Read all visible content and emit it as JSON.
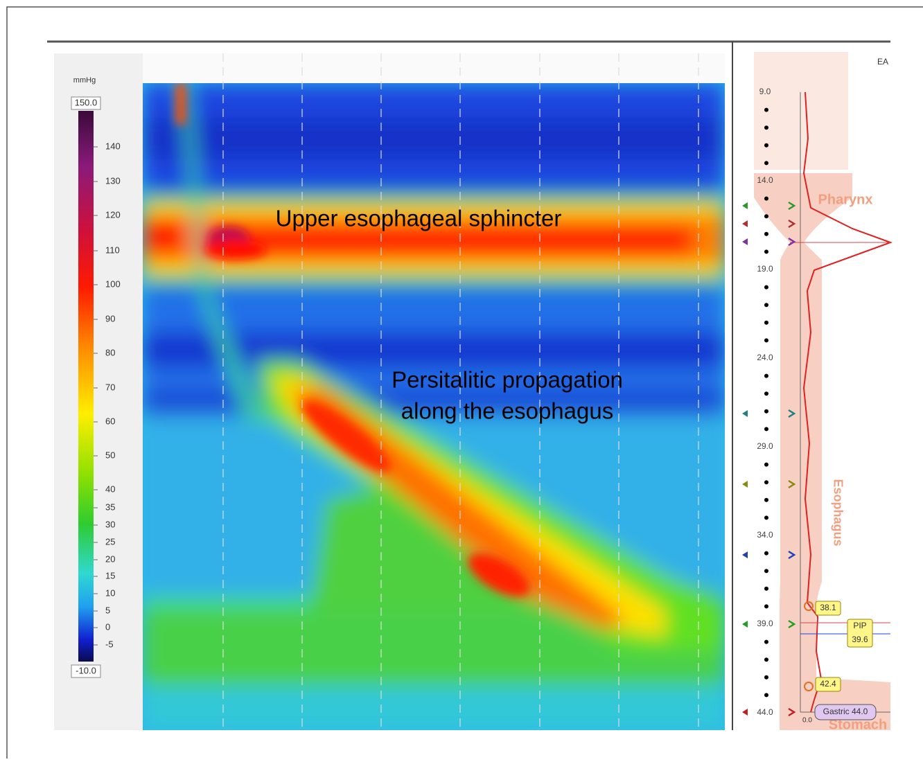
{
  "colorbar": {
    "unit": "mmHg",
    "max_label": "150.0",
    "min_label": "-10.0",
    "ticks": [
      "140",
      "130",
      "120",
      "110",
      "100",
      "90",
      "80",
      "70",
      "60",
      "50",
      "40",
      "35",
      "30",
      "25",
      "20",
      "15",
      "10",
      "5",
      "0",
      "-5"
    ]
  },
  "annotations": {
    "ues": "Upper esophageal sphincter",
    "peristalsis": [
      "Persitalitic propagation",
      "along the esophagus"
    ]
  },
  "side_panel": {
    "header": "EA",
    "depths": [
      "9.0",
      "14.0",
      "19.0",
      "24.0",
      "29.0",
      "34.0",
      "39.0",
      "44.0"
    ],
    "regions": {
      "pharynx": "Pharynx",
      "esophagus": "Esophagus",
      "stomach": "Stomach"
    },
    "markers": {
      "upper": "38.1",
      "pip_name": "PIP",
      "pip_value": "39.6",
      "lower": "42.4",
      "gastric": "Gastric 44.0",
      "origin": "0.0"
    }
  }
}
